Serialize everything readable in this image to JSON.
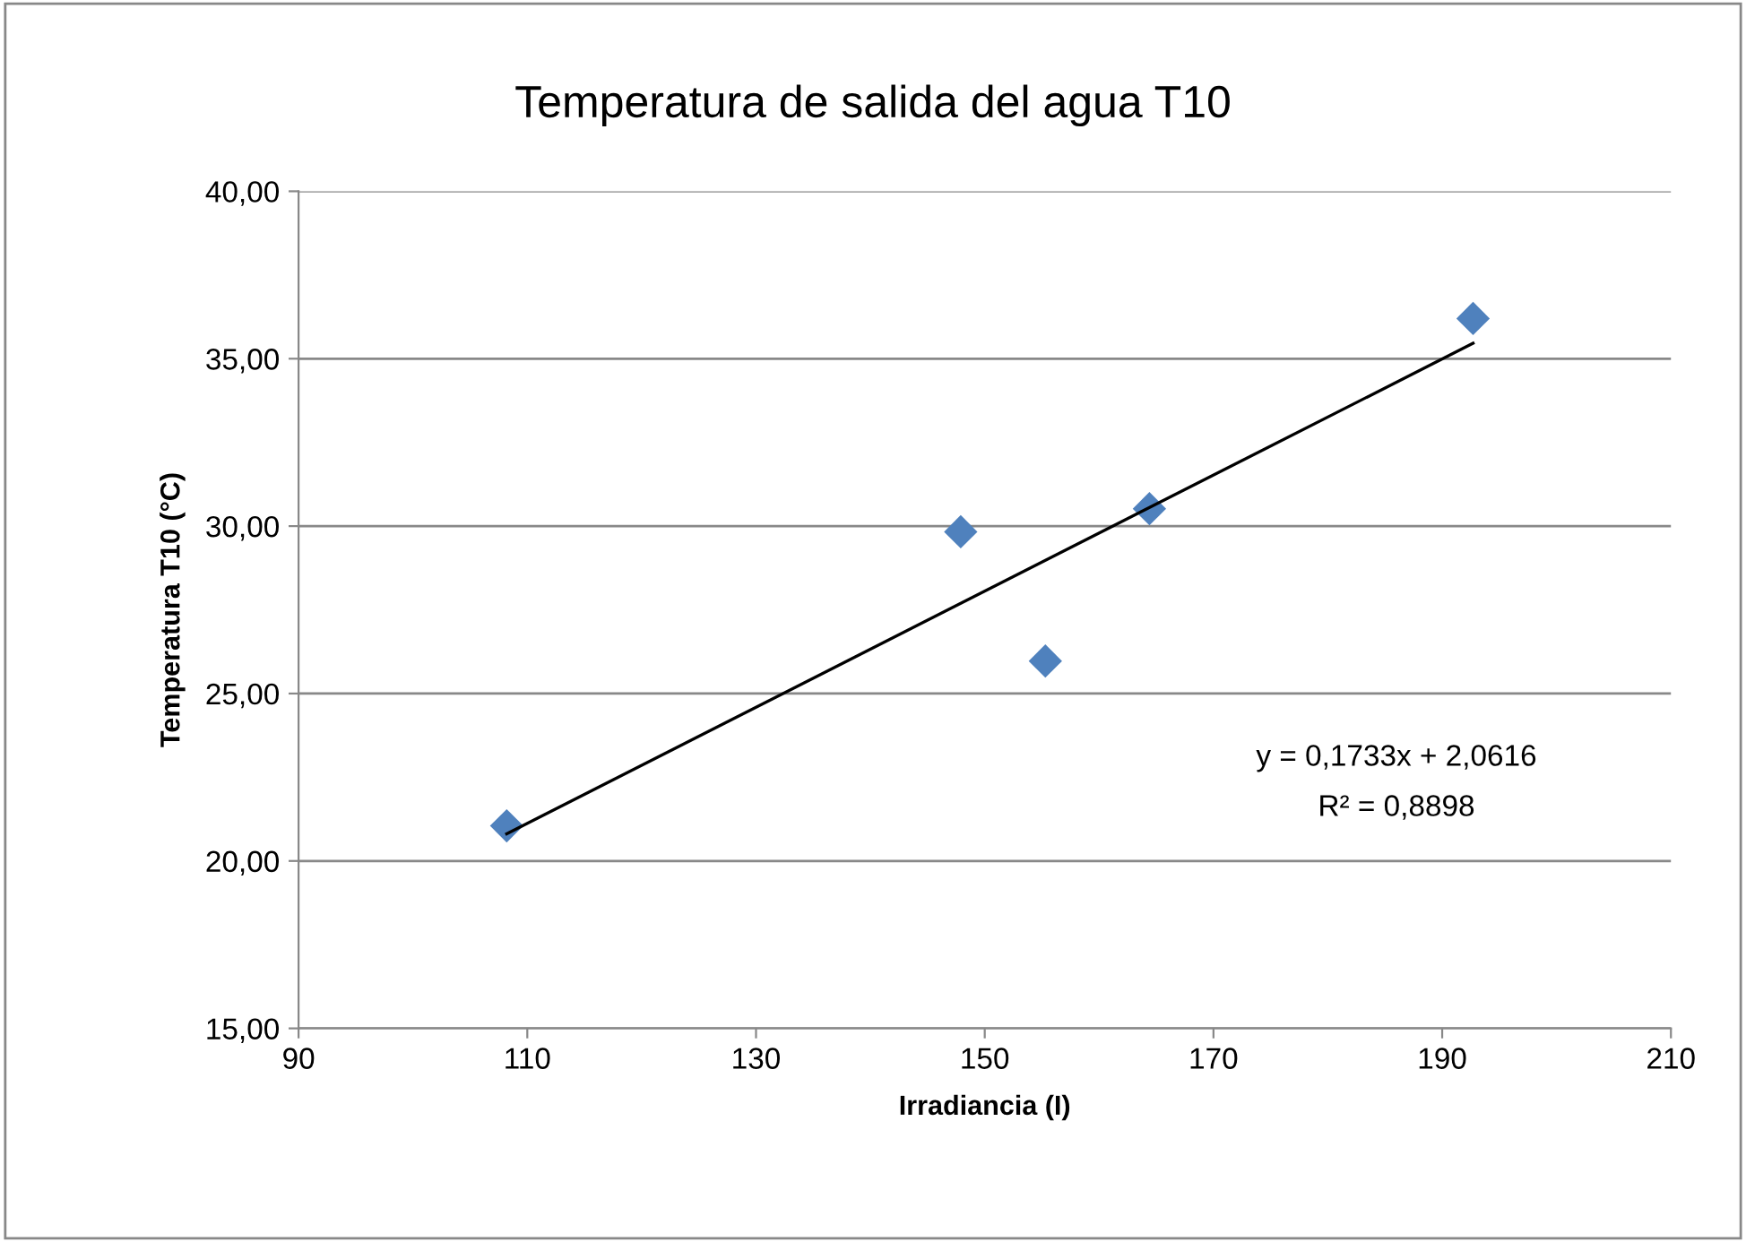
{
  "chart_data": {
    "type": "scatter",
    "title": "Temperatura de salida del agua T10",
    "xlabel": "Irradiancia (I)",
    "ylabel": "Temperatura T10 (°C)",
    "series": [
      {
        "color": "#4f81bd",
        "marker": "diamond",
        "x": [
          108.2,
          147.9,
          155.3,
          164.4,
          192.7
        ],
        "values": [
          21.05,
          29.83,
          25.97,
          30.52,
          36.2
        ]
      },
      {
        "type": "line",
        "color": "#000000",
        "marker": "none",
        "line_style": "solid",
        "x": [
          108.2,
          192.7
        ],
        "values": [
          20.81,
          35.46
        ]
      }
    ],
    "xlim": [
      90,
      210
    ],
    "xticks": [
      90,
      110,
      130,
      150,
      170,
      190,
      210
    ],
    "ylim": [
      15,
      40
    ],
    "yticks": [
      {
        "value": 15,
        "label": "15,00"
      },
      {
        "value": 20,
        "label": "20,00"
      },
      {
        "value": 25,
        "label": "25,00"
      },
      {
        "value": 30,
        "label": "30,00"
      },
      {
        "value": 35,
        "label": "35,00"
      },
      {
        "value": 40,
        "label": "40,00"
      }
    ],
    "grid": "y",
    "legend": false,
    "annotations": [
      "y = 0,1733x + 2,0616",
      "R² = 0,8898"
    ]
  }
}
